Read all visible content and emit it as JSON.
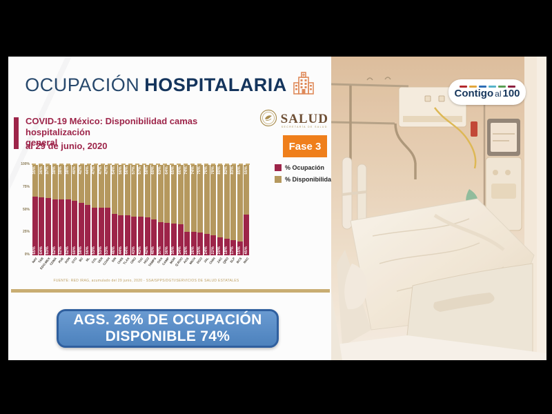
{
  "header": {
    "title_light": "OCUPACIÓN",
    "title_bold": "HOSPITALARIA"
  },
  "card": {
    "subtitle_line1": "COVID-19 México: Disponibilidad camas hospitalización",
    "subtitle_line2": "general",
    "date": "al 29 de junio, 2020",
    "phase_badge": "Fase 3",
    "source": "FUENTE: RED IRAG, acumulado del 29 junio, 2020 - SSA/SPPS/DGTI/SERVICIOS DE SALUD ESTATALES"
  },
  "salud_logo": {
    "word": "SALUD",
    "subtext": "SECRETARÍA DE SALUD"
  },
  "contigo_logo": {
    "part_bold1": "Contigo",
    "part_light": "al",
    "part_bold2": "100",
    "dash_colors": [
      "#b3282d",
      "#e2a63d",
      "#2d6db5",
      "#56b3c9",
      "#5a9e54",
      "#8c1f3f"
    ]
  },
  "legend": [
    {
      "label": "% Ocupación",
      "color": "#9d2449"
    },
    {
      "label": "% Disponibilidad",
      "color": "#b5985e"
    }
  ],
  "banner": {
    "line1": "AGS. 26% DE OCUPACIÓN",
    "line2": "DISPONIBLE 74%"
  },
  "colors": {
    "occupation": "#9d2449",
    "availability": "#b5985e",
    "phase_orange": "#ef7f1b",
    "banner_blue": "#4d82bd",
    "navy": "#14345c"
  },
  "chart_data": {
    "type": "bar",
    "stacked": true,
    "title": "COVID-19 México: Disponibilidad camas hospitalización general al 29 de junio, 2020",
    "ylim": [
      0,
      100
    ],
    "yticks": [
      "100%",
      "75%",
      "50%",
      "25%",
      "0%"
    ],
    "grid": "dashed line at 100% only",
    "legend_position": "right",
    "categories": [
      "NAY",
      "TAB",
      "EDO.MEX",
      "CDMX",
      "PUE",
      "SON",
      "GTO",
      "BC",
      "NL",
      "COL",
      "VER",
      "COAH",
      "SIN",
      "CHIS",
      "TLAX",
      "GRO",
      "YUC",
      "HGO",
      "TAMPS",
      "OAX",
      "CAMP",
      "MOR",
      "Q.ROO",
      "AGS",
      "MICH",
      "DGO",
      "JAL",
      "CHIH",
      "ZAC",
      "QRO",
      "SLP",
      "BCS",
      "NAC"
    ],
    "series": [
      {
        "name": "% Ocupación",
        "color": "#9d2449",
        "values": [
          65,
          64,
          63,
          62,
          62,
          62,
          60,
          58,
          56,
          53,
          53,
          53,
          46,
          44,
          44,
          43,
          43,
          42,
          40,
          37,
          36,
          35,
          34,
          26,
          26,
          25,
          24,
          22,
          20,
          18,
          17,
          15,
          45
        ]
      },
      {
        "name": "% Disponibilidad",
        "color": "#b5985e",
        "values": [
          35,
          36,
          37,
          38,
          38,
          38,
          40,
          42,
          44,
          47,
          47,
          47,
          54,
          56,
          56,
          57,
          57,
          58,
          60,
          63,
          64,
          65,
          66,
          74,
          74,
          75,
          76,
          78,
          80,
          82,
          83,
          85,
          55
        ]
      }
    ]
  }
}
